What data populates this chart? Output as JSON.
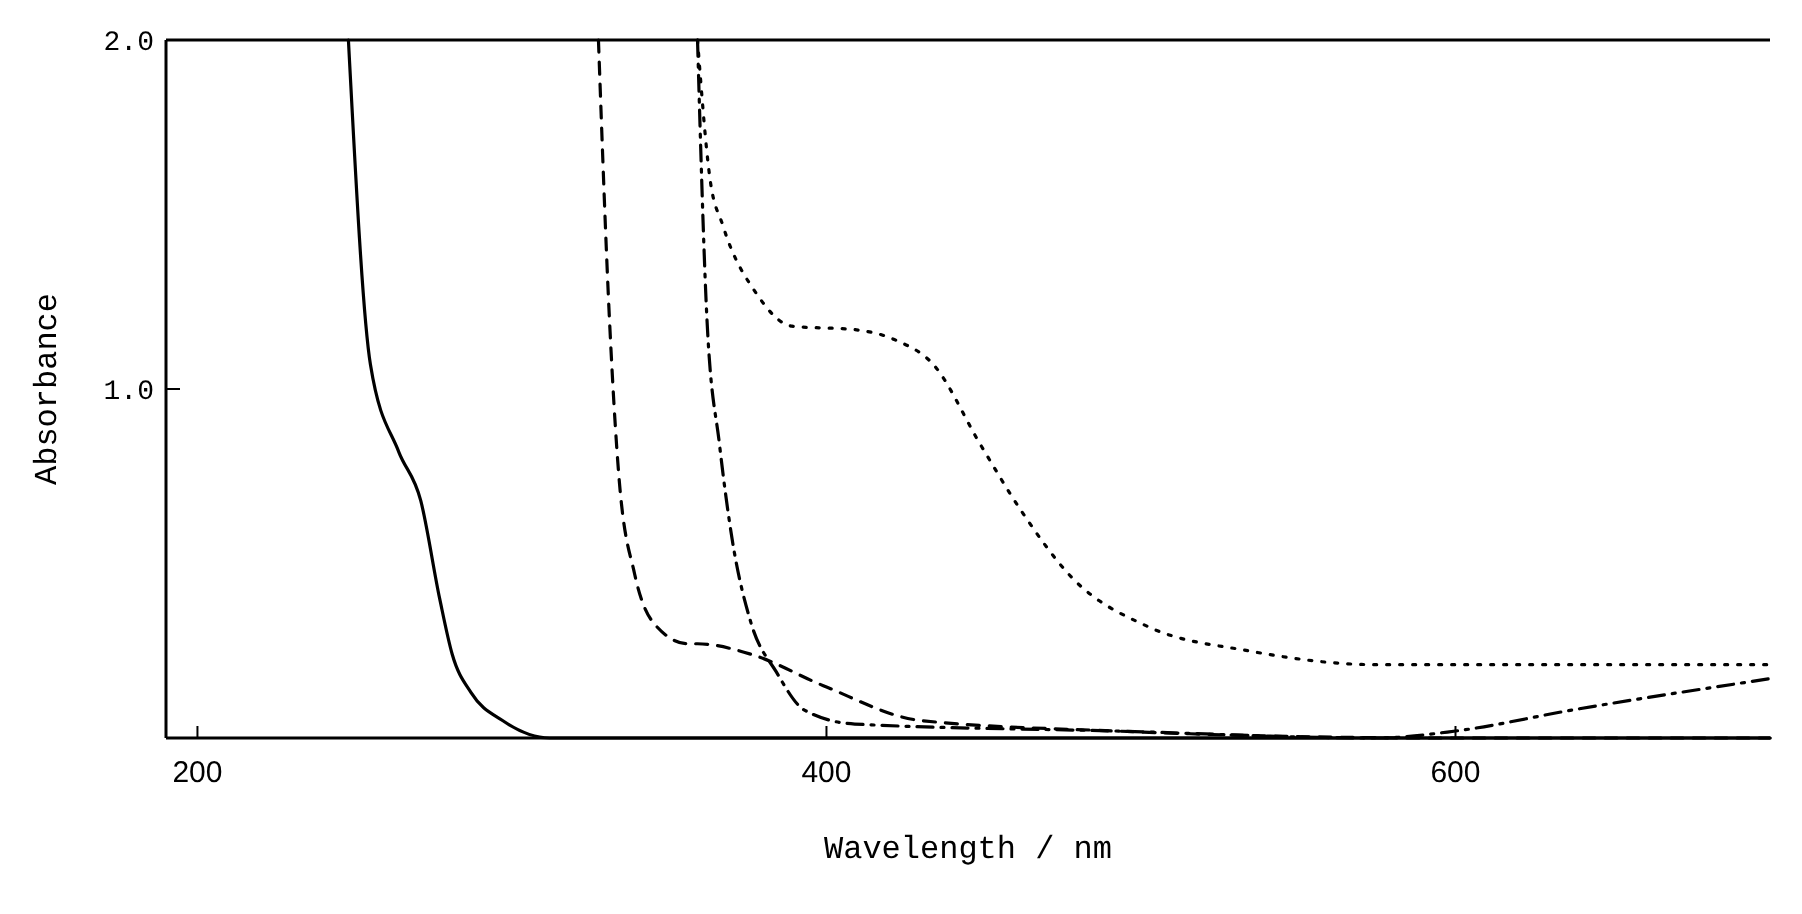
{
  "chart_data": {
    "type": "line",
    "xlabel": "Wavelength / nm",
    "ylabel": "Absorbance",
    "xlim": [
      190,
      700
    ],
    "ylim": [
      0,
      2
    ],
    "xticks": [
      200,
      400,
      600
    ],
    "yticks": [
      {
        "value": 1,
        "label": "1.0"
      },
      {
        "value": 2,
        "label": "2.0"
      }
    ],
    "grid": false,
    "marker": "none",
    "series": [
      {
        "color": "#000000",
        "line_style": "solid",
        "x": [
          248,
          255,
          264,
          271,
          277,
          281,
          287,
          297,
          312,
          400,
          500,
          600,
          700
        ],
        "values": [
          2.0,
          1.07,
          0.82,
          0.68,
          0.4,
          0.24,
          0.13,
          0.05,
          0.0,
          0.0,
          0.0,
          0.0,
          0.0
        ]
      },
      {
        "color": "#000000",
        "line_style": "dashed",
        "x": [
          327.5,
          331,
          334,
          339,
          345,
          356,
          359,
          376,
          399,
          430,
          492,
          596,
          700
        ],
        "values": [
          2.0,
          1.2,
          0.75,
          0.47,
          0.33,
          0.27,
          0.27,
          0.24,
          0.15,
          0.05,
          0.02,
          0.0,
          0.0
        ]
      },
      {
        "color": "#000000",
        "line_style": "dashdot",
        "x": [
          359,
          362,
          366,
          370,
          376,
          384,
          393,
          409,
          492,
          575,
          600,
          637,
          700
        ],
        "values": [
          2.0,
          1.2,
          0.84,
          0.57,
          0.33,
          0.19,
          0.08,
          0.04,
          0.02,
          0.0,
          0.02,
          0.08,
          0.17
        ]
      },
      {
        "color": "#000000",
        "line_style": "dotted",
        "x": [
          359,
          363,
          367,
          378,
          389,
          409,
          422,
          434,
          449,
          462,
          478,
          502,
          534,
          575,
          700
        ],
        "values": [
          2.0,
          1.6,
          1.47,
          1.27,
          1.18,
          1.17,
          1.14,
          1.07,
          0.84,
          0.65,
          0.46,
          0.32,
          0.25,
          0.21,
          0.21
        ]
      }
    ]
  }
}
